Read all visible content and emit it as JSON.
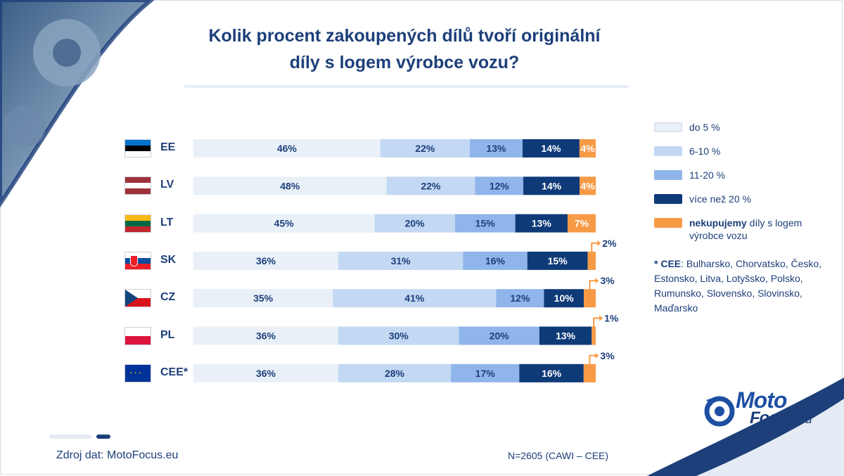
{
  "title_line1": "Kolik procent zakoupených dílů tvoří originální",
  "title_line2": "díly s logem výrobce vozu?",
  "colors": {
    "do5": "#e9f0f8",
    "p6_10": "#c3d8f3",
    "p11_20": "#8fb5ea",
    "over20": "#0e3a78",
    "none": "#f79a45"
  },
  "chart_data": {
    "type": "bar",
    "orientation": "horizontal-stacked-100",
    "categories": [
      "EE",
      "LV",
      "LT",
      "SK",
      "CZ",
      "PL",
      "CEE*"
    ],
    "series": [
      {
        "name": "do 5 %",
        "values": [
          46,
          48,
          45,
          36,
          35,
          36,
          36
        ],
        "labels": [
          "46%",
          "48%",
          "45%",
          "36%",
          "35%",
          "36%",
          "36%"
        ]
      },
      {
        "name": "6-10 %",
        "values": [
          22,
          22,
          20,
          31,
          41,
          30,
          28
        ],
        "labels": [
          "22%",
          "22%",
          "20%",
          "31%",
          "41%",
          "30%",
          "28%"
        ]
      },
      {
        "name": "11-20 %",
        "values": [
          13,
          12,
          15,
          16,
          12,
          20,
          17
        ],
        "labels": [
          "13%",
          "12%",
          "15%",
          "16%",
          "12%",
          "20%",
          "17%"
        ]
      },
      {
        "name": "více než 20 %",
        "values": [
          14,
          14,
          13,
          15,
          10,
          13,
          16
        ],
        "labels": [
          "14%",
          "14%",
          "13%",
          "15%",
          "10%",
          "13%",
          "16%"
        ]
      },
      {
        "name": "nekupujemy díly s logem výrobce vozu",
        "values": [
          4,
          4,
          7,
          2,
          3,
          1,
          3
        ],
        "labels": [
          "4%",
          "4%",
          "7%",
          "2%",
          "3%",
          "1%",
          "3%"
        ]
      }
    ],
    "outside_label_rows": [
      "SK",
      "CZ",
      "PL",
      "CEE*"
    ],
    "legend_position": "right"
  },
  "legend": [
    {
      "key": "do5",
      "label": "do 5 %"
    },
    {
      "key": "p6_10",
      "label": "6-10 %"
    },
    {
      "key": "p11_20",
      "label": "11-20 %"
    },
    {
      "key": "over20",
      "label": "více než 20 %"
    },
    {
      "key": "none",
      "label_bold": "nekupujemy",
      "label": " díly s logem výrobce vozu"
    }
  ],
  "flags": {
    "EE": [
      "#0072ce",
      "#000000",
      "#ffffff"
    ],
    "LV": [
      "#9e3039",
      "#ffffff",
      "#9e3039"
    ],
    "LT": [
      "#fdb913",
      "#006a44",
      "#c1272d"
    ],
    "SK": [
      "#ffffff",
      "#0b4ea2",
      "#ee1c25"
    ],
    "PL": [
      "#ffffff",
      "#dc143c"
    ]
  },
  "cee_note_head": "* CEE",
  "cee_note_body": ": Bulharsko, Chorvatsko, Česko, Estonsko, Litva, Lotyšsko, Polsko, Rumunsko, Slovensko, Slovinsko, Maďarsko",
  "source": "Zdroj dat: MotoFocus.eu",
  "sample": "N=2605 (CAWI – CEE)",
  "logo": {
    "line1": "Moto",
    "line2": "Focus",
    "suffix": ".eu"
  }
}
